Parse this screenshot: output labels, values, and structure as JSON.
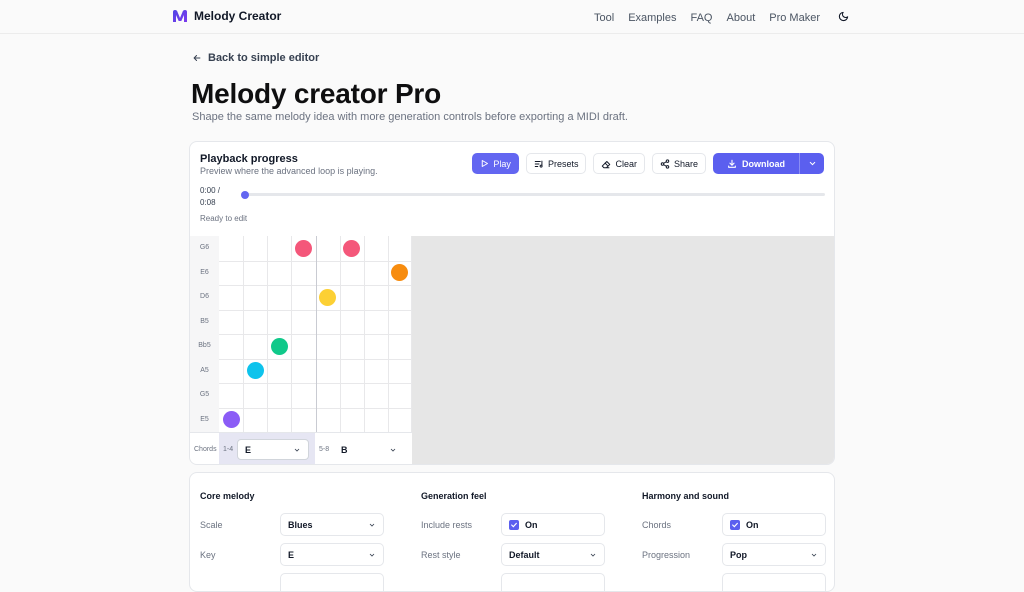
{
  "header": {
    "brand": "Melody Creator",
    "nav": [
      "Tool",
      "Examples",
      "FAQ",
      "About",
      "Pro Maker"
    ]
  },
  "page": {
    "back_label": "Back to simple editor",
    "title": "Melody creator Pro",
    "subtitle": "Shape the same melody idea with more generation controls before exporting a MIDI draft."
  },
  "playback": {
    "title": "Playback progress",
    "subtitle": "Preview where the advanced loop is playing.",
    "time_current": "0:00 /",
    "time_total": "0:08",
    "progress": 0.0,
    "status": "Ready to edit",
    "buttons": {
      "play": "Play",
      "presets": "Presets",
      "clear": "Clear",
      "share": "Share",
      "download": "Download"
    }
  },
  "piano_roll": {
    "notes": [
      "G6",
      "E6",
      "D6",
      "B5",
      "Bb5",
      "A5",
      "G5",
      "E5"
    ],
    "steps": 8,
    "placed": [
      {
        "step": 0,
        "note": "E5",
        "color": "#8b5cf6"
      },
      {
        "step": 1,
        "note": "A5",
        "color": "#0ec3ec"
      },
      {
        "step": 2,
        "note": "Bb5",
        "color": "#10c98a"
      },
      {
        "step": 3,
        "note": "G6",
        "color": "#f4577a"
      },
      {
        "step": 4,
        "note": "D6",
        "color": "#fcd034"
      },
      {
        "step": 5,
        "note": "G6",
        "color": "#f4577a"
      },
      {
        "step": 7,
        "note": "E6",
        "color": "#f78c0f"
      }
    ],
    "chords_label": "Chords",
    "chord_segments": [
      {
        "range": "1-4",
        "value": "E"
      },
      {
        "range": "5-8",
        "value": "B"
      }
    ]
  },
  "settings": {
    "core": {
      "title": "Core melody",
      "rows": [
        {
          "label": "Scale",
          "value": "Blues"
        },
        {
          "label": "Key",
          "value": "E"
        }
      ]
    },
    "feel": {
      "title": "Generation feel",
      "rows": [
        {
          "label": "Include rests",
          "value": "On",
          "checked": true
        },
        {
          "label": "Rest style",
          "value": "Default"
        }
      ]
    },
    "harmony": {
      "title": "Harmony and sound",
      "rows": [
        {
          "label": "Chords",
          "value": "On",
          "checked": true
        },
        {
          "label": "Progression",
          "value": "Pop"
        }
      ]
    }
  },
  "colors": {
    "accent": "#5b5fef"
  }
}
